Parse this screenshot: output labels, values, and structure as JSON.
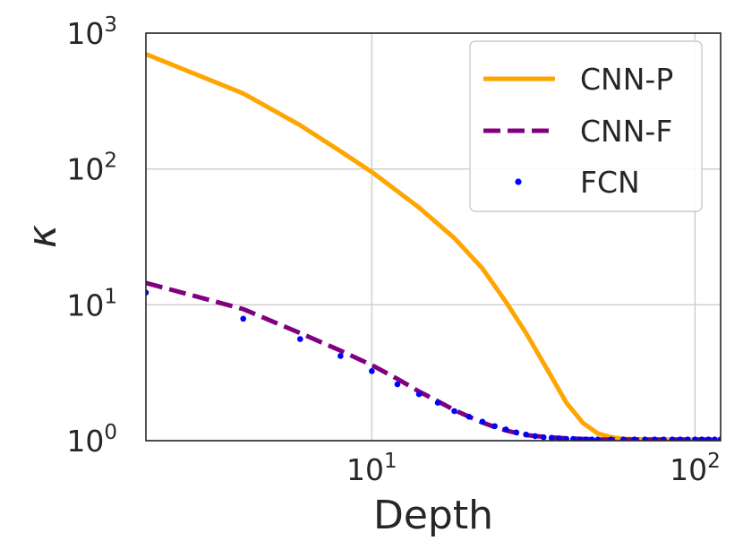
{
  "chart_data": {
    "type": "line",
    "title": "",
    "xlabel": "Depth",
    "ylabel": "κ",
    "xscale": "log",
    "yscale": "log",
    "xlim": [
      2,
      120
    ],
    "ylim": [
      1,
      1000
    ],
    "grid": true,
    "legend_position": "top-right",
    "x_ticks": [
      {
        "base": "10",
        "exp": "1"
      },
      {
        "base": "10",
        "exp": "2"
      }
    ],
    "y_ticks": [
      {
        "base": "10",
        "exp": "0"
      },
      {
        "base": "10",
        "exp": "1"
      },
      {
        "base": "10",
        "exp": "2"
      },
      {
        "base": "10",
        "exp": "3"
      }
    ],
    "series": [
      {
        "name": "CNN-P",
        "style": "solid",
        "color": "#FFA500",
        "x": [
          2,
          4,
          6,
          8,
          10,
          14,
          18,
          22,
          26,
          30,
          35,
          40,
          45,
          50,
          55,
          60,
          70,
          80,
          100,
          120
        ],
        "y": [
          700,
          360,
          210,
          135,
          95,
          52,
          31,
          18.5,
          10.5,
          6.2,
          3.3,
          1.9,
          1.35,
          1.13,
          1.06,
          1.03,
          1.02,
          1.02,
          1.02,
          1.02
        ]
      },
      {
        "name": "CNN-F",
        "style": "dashed",
        "color": "#800080",
        "x": [
          2,
          4,
          6,
          8,
          10,
          12,
          14,
          16,
          18,
          20,
          22,
          24,
          26,
          28,
          30,
          35,
          40,
          50,
          60,
          80,
          100,
          120
        ],
        "y": [
          14.5,
          9.3,
          6.2,
          4.6,
          3.6,
          2.85,
          2.3,
          1.95,
          1.68,
          1.5,
          1.36,
          1.26,
          1.19,
          1.14,
          1.1,
          1.06,
          1.04,
          1.02,
          1.02,
          1.02,
          1.02,
          1.02
        ]
      },
      {
        "name": "FCN",
        "style": "dots",
        "color": "#0000FF",
        "x": [
          2,
          4,
          6,
          8,
          10,
          12,
          14,
          16,
          18,
          20,
          22,
          24,
          26,
          28,
          30,
          32,
          34,
          36,
          38,
          40,
          42,
          44,
          46,
          48,
          50,
          55,
          60,
          65,
          70,
          75,
          80,
          85,
          90,
          95,
          100,
          105,
          110,
          115,
          120
        ],
        "y": [
          12.3,
          7.9,
          5.6,
          4.2,
          3.25,
          2.6,
          2.2,
          1.9,
          1.65,
          1.5,
          1.38,
          1.28,
          1.21,
          1.15,
          1.11,
          1.08,
          1.06,
          1.05,
          1.04,
          1.03,
          1.03,
          1.02,
          1.02,
          1.02,
          1.02,
          1.02,
          1.02,
          1.02,
          1.02,
          1.02,
          1.02,
          1.02,
          1.02,
          1.02,
          1.02,
          1.02,
          1.02,
          1.02,
          1.02
        ]
      }
    ]
  }
}
